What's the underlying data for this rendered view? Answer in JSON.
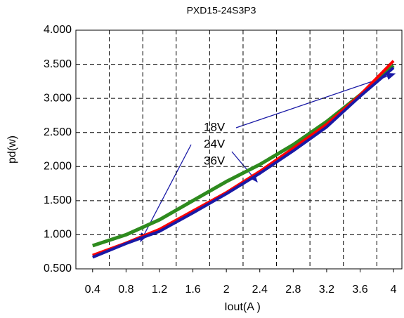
{
  "chart_data": {
    "type": "line",
    "title": "PXD15-24S3P3",
    "x_label": "Iout(A )",
    "y_label": "pd(w)",
    "x": [
      0.4,
      0.8,
      1.2,
      1.6,
      2,
      2.4,
      2.8,
      3.2,
      3.6,
      4
    ],
    "series": [
      {
        "name": "18V",
        "color": "#ff0000",
        "values": [
          0.7,
          0.88,
          1.08,
          1.35,
          1.62,
          1.93,
          2.27,
          2.62,
          3.05,
          3.55
        ]
      },
      {
        "name": "24V",
        "color": "#1a1aa6",
        "values": [
          0.67,
          0.87,
          1.05,
          1.32,
          1.6,
          1.9,
          2.23,
          2.58,
          3.03,
          3.45
        ]
      },
      {
        "name": "36V",
        "color": "#2e8b1e",
        "values": [
          0.84,
          1.0,
          1.22,
          1.5,
          1.78,
          2.03,
          2.32,
          2.66,
          3.05,
          3.48
        ]
      }
    ],
    "xlim": [
      0.2,
      4.1
    ],
    "xticks": [
      0.4,
      0.8,
      1.2,
      1.6,
      2,
      2.4,
      2.8,
      3.2,
      3.6,
      4
    ],
    "ylim": [
      0.5,
      4.0
    ],
    "yticks": [
      {
        "value": 0.5,
        "label": "0.500"
      },
      {
        "value": 1.0,
        "label": "1.000"
      },
      {
        "value": 1.5,
        "label": "1.500"
      },
      {
        "value": 2.0,
        "label": "2.000"
      },
      {
        "value": 2.5,
        "label": "2.500"
      },
      {
        "value": 3.0,
        "label": "3.000"
      },
      {
        "value": 3.5,
        "label": "3.500"
      },
      {
        "value": 4.0,
        "label": "4.000"
      }
    ],
    "grid": true
  }
}
